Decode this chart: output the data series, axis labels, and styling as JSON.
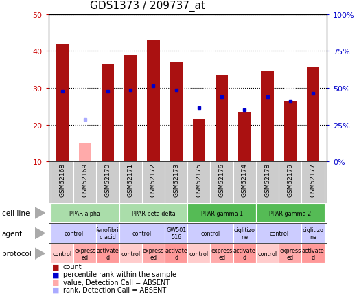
{
  "title": "GDS1373 / 209737_at",
  "samples": [
    "GSM52168",
    "GSM52169",
    "GSM52170",
    "GSM52171",
    "GSM52172",
    "GSM52173",
    "GSM52175",
    "GSM52176",
    "GSM52174",
    "GSM52178",
    "GSM52179",
    "GSM52177"
  ],
  "bar_heights": [
    42,
    15,
    36.5,
    39,
    43,
    37,
    21.5,
    33.5,
    23.5,
    34.5,
    26.5,
    35.5
  ],
  "bar_absent": [
    false,
    true,
    false,
    false,
    false,
    false,
    false,
    false,
    false,
    false,
    false,
    false
  ],
  "rank_values": [
    29,
    21.5,
    29,
    29.5,
    30.5,
    29.5,
    24.5,
    27.5,
    24,
    27.5,
    26.5,
    28.5
  ],
  "rank_absent": [
    false,
    true,
    false,
    false,
    false,
    false,
    false,
    false,
    false,
    false,
    false,
    false
  ],
  "ylim_left": [
    10,
    50
  ],
  "ylim_right": [
    0,
    100
  ],
  "yticks_left": [
    10,
    20,
    30,
    40,
    50
  ],
  "yticks_right": [
    0,
    25,
    50,
    75,
    100
  ],
  "ytick_labels_right": [
    "0%",
    "25%",
    "50%",
    "75%",
    "100%"
  ],
  "bar_color": "#aa1111",
  "bar_absent_color": "#ffaaaa",
  "rank_color": "#0000cc",
  "rank_absent_color": "#aaaaff",
  "cell_line_groups": [
    {
      "label": "PPAR alpha",
      "start": 0,
      "end": 3,
      "color": "#aaddaa"
    },
    {
      "label": "PPAR beta delta",
      "start": 3,
      "end": 6,
      "color": "#aaddaa"
    },
    {
      "label": "PPAR gamma 1",
      "start": 6,
      "end": 9,
      "color": "#55bb55"
    },
    {
      "label": "PPAR gamma 2",
      "start": 9,
      "end": 12,
      "color": "#55bb55"
    }
  ],
  "agent_groups": [
    {
      "label": "control",
      "start": 0,
      "end": 2
    },
    {
      "label": "fenofibri\nc acid",
      "start": 2,
      "end": 3
    },
    {
      "label": "control",
      "start": 3,
      "end": 5
    },
    {
      "label": "GW501\n516",
      "start": 5,
      "end": 6
    },
    {
      "label": "control",
      "start": 6,
      "end": 8
    },
    {
      "label": "ciglitizo\nne",
      "start": 8,
      "end": 9
    },
    {
      "label": "control",
      "start": 9,
      "end": 11
    },
    {
      "label": "ciglitizo\nne",
      "start": 11,
      "end": 12
    }
  ],
  "protocol_groups": [
    {
      "label": "control",
      "start": 0,
      "end": 1
    },
    {
      "label": "express\ned",
      "start": 1,
      "end": 2
    },
    {
      "label": "activate\nd",
      "start": 2,
      "end": 3
    },
    {
      "label": "control",
      "start": 3,
      "end": 4
    },
    {
      "label": "express\ned",
      "start": 4,
      "end": 5
    },
    {
      "label": "activate\nd",
      "start": 5,
      "end": 6
    },
    {
      "label": "control",
      "start": 6,
      "end": 7
    },
    {
      "label": "express\ned",
      "start": 7,
      "end": 8
    },
    {
      "label": "activate\nd",
      "start": 8,
      "end": 9
    },
    {
      "label": "control",
      "start": 9,
      "end": 10
    },
    {
      "label": "express\ned",
      "start": 10,
      "end": 11
    },
    {
      "label": "activate\nd",
      "start": 11,
      "end": 12
    }
  ],
  "left_labels": [
    "cell line",
    "agent",
    "protocol"
  ],
  "legend_items": [
    {
      "color": "#aa1111",
      "label": "count"
    },
    {
      "color": "#0000cc",
      "label": "percentile rank within the sample"
    },
    {
      "color": "#ffaaaa",
      "label": "value, Detection Call = ABSENT"
    },
    {
      "color": "#aaaaff",
      "label": "rank, Detection Call = ABSENT"
    }
  ],
  "bg_color": "#ffffff",
  "sample_bg_color": "#cccccc",
  "agent_color": "#ccccff",
  "protocol_color_light": "#ffcccc",
  "protocol_color_dark": "#ff9999"
}
